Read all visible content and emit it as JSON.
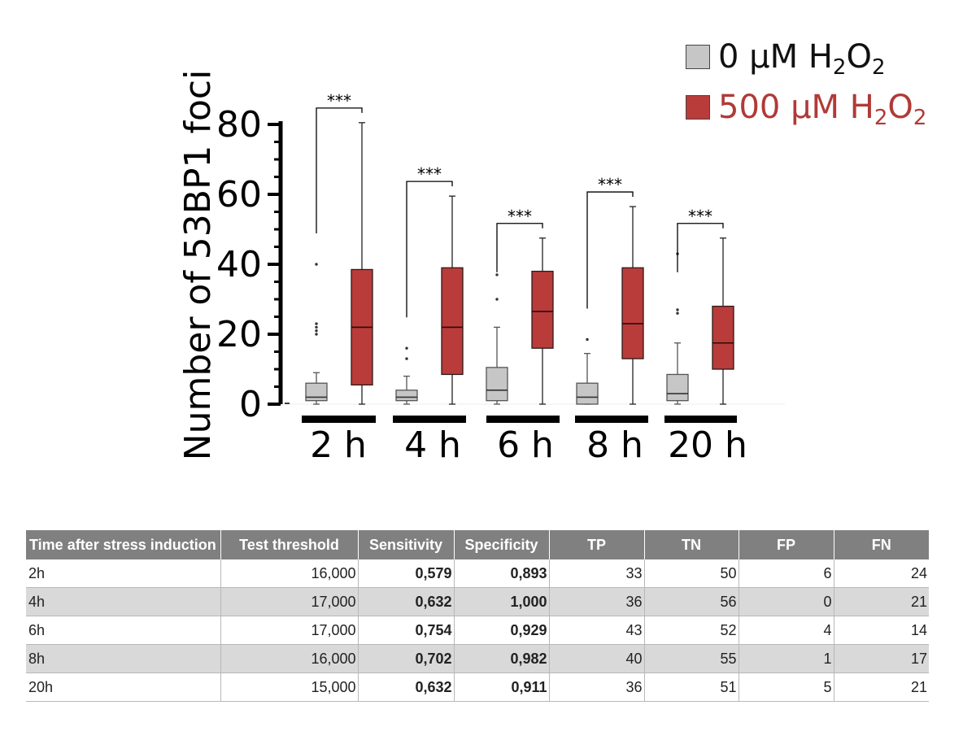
{
  "chart_data": {
    "type": "box",
    "ylabel": "Number of 53BP1 foci",
    "ylim": [
      0,
      80
    ],
    "yticks": [
      0,
      20,
      40,
      60,
      80
    ],
    "categories": [
      "2 h",
      "4 h",
      "6 h",
      "8 h",
      "20 h"
    ],
    "significance_label": "***",
    "series": [
      {
        "name_main": "0 µM H",
        "name_sub1": "2",
        "name_mid": "O",
        "name_sub2": "2",
        "color": "#c6c6c6",
        "text_color": "#111111",
        "boxes": [
          {
            "min": 0,
            "q1": 1,
            "median": 2,
            "q3": 6,
            "max": 9,
            "outliers": [
              20,
              21,
              22,
              23,
              40
            ]
          },
          {
            "min": 0,
            "q1": 1,
            "median": 2,
            "q3": 4,
            "max": 8,
            "outliers": [
              13,
              16
            ]
          },
          {
            "min": 0,
            "q1": 1,
            "median": 4,
            "q3": 10.5,
            "max": 22,
            "outliers": [
              30,
              37
            ]
          },
          {
            "min": 0,
            "q1": 0,
            "median": 2,
            "q3": 6,
            "max": 14.5,
            "outliers": [
              18.5
            ]
          },
          {
            "min": 0,
            "q1": 1,
            "median": 3,
            "q3": 8.5,
            "max": 17.5,
            "outliers": [
              26,
              27,
              43
            ]
          }
        ]
      },
      {
        "name_main": "500 µM H",
        "name_sub1": "2",
        "name_mid": "O",
        "name_sub2": "2",
        "color": "#b93c3b",
        "text_color": "#b03a38",
        "boxes": [
          {
            "min": 0,
            "q1": 5.5,
            "median": 22,
            "q3": 38.5,
            "max": 80.5,
            "outliers": []
          },
          {
            "min": 0,
            "q1": 8.5,
            "median": 22,
            "q3": 39,
            "max": 59.5,
            "outliers": []
          },
          {
            "min": 0,
            "q1": 16,
            "median": 26.5,
            "q3": 38,
            "max": 47.5,
            "outliers": []
          },
          {
            "min": 0,
            "q1": 13,
            "median": 23,
            "q3": 39,
            "max": 56.5,
            "outliers": []
          },
          {
            "min": 0,
            "q1": 10,
            "median": 17.5,
            "q3": 28,
            "max": 47.5,
            "outliers": []
          }
        ]
      }
    ]
  },
  "table": {
    "headers": [
      "Time after stress induction",
      "Test threshold",
      "Sensitivity",
      "Specificity",
      "TP",
      "TN",
      "FP",
      "FN"
    ],
    "rows": [
      [
        "2h",
        "16,000",
        "0,579",
        "0,893",
        "33",
        "50",
        "6",
        "24"
      ],
      [
        "4h",
        "17,000",
        "0,632",
        "1,000",
        "36",
        "56",
        "0",
        "21"
      ],
      [
        "6h",
        "17,000",
        "0,754",
        "0,929",
        "43",
        "52",
        "4",
        "14"
      ],
      [
        "8h",
        "16,000",
        "0,702",
        "0,982",
        "40",
        "55",
        "1",
        "17"
      ],
      [
        "20h",
        "15,000",
        "0,632",
        "0,911",
        "36",
        "51",
        "5",
        "21"
      ]
    ]
  }
}
